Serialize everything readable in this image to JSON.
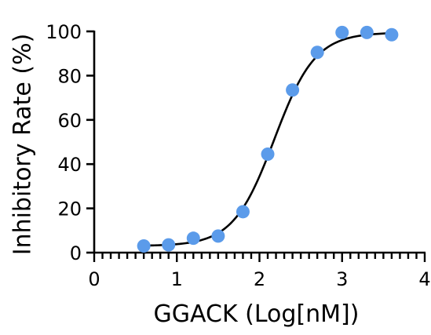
{
  "chart_data": {
    "type": "scatter",
    "title": "",
    "xlabel": "GGACK (Log[nM])",
    "ylabel": "Inhibitory Rate (%)",
    "xlim": [
      0,
      4
    ],
    "ylim": [
      0,
      100
    ],
    "x_ticks": [
      "0",
      "1",
      "2",
      "3",
      "4"
    ],
    "y_ticks": [
      "0",
      "20",
      "40",
      "60",
      "80",
      "100"
    ],
    "x_minor_step": 0.1,
    "grid": false,
    "legend": "none",
    "points_color": "#5B9BEA",
    "curve_color": "#000000",
    "x": [
      0.6,
      0.9,
      1.2,
      1.5,
      1.8,
      2.1,
      2.4,
      2.7,
      3.0,
      3.3,
      3.6
    ],
    "y": [
      3,
      3.5,
      6.5,
      7.5,
      18.5,
      44.5,
      73.5,
      90.5,
      99.5,
      99.5,
      98.5
    ],
    "fit_curve": {
      "model": "four-parameter logistic",
      "bottom": 3,
      "top": 99.5,
      "log_ic50": 2.18,
      "hill_slope": 1.75,
      "x_range": [
        0.6,
        3.6
      ]
    }
  }
}
